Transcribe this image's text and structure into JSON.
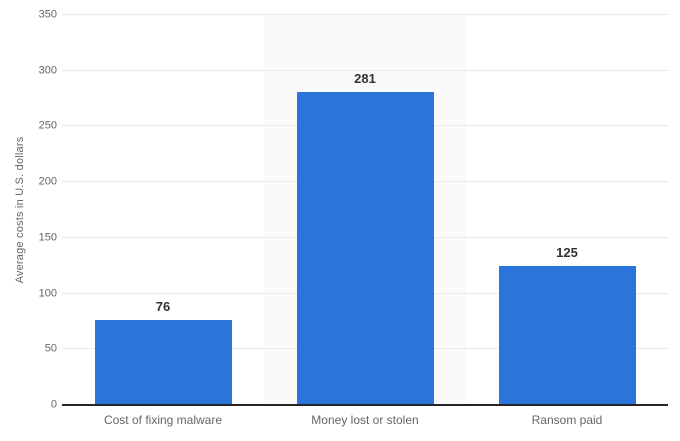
{
  "chart": {
    "colors": {
      "bar": "#2b74da",
      "band": "#fafafa",
      "grid": "#e9e9e9",
      "axis": "#262626",
      "tick": "#666666",
      "value": "#333333"
    }
  },
  "chart_data": {
    "type": "bar",
    "categories": [
      "Cost of fixing malware",
      "Money lost or stolen",
      "Ransom paid"
    ],
    "values": [
      76,
      281,
      125
    ],
    "title": "",
    "xlabel": "",
    "ylabel": "Average costs in U.S. dollars",
    "ylim": [
      0,
      350
    ],
    "yticks": [
      0,
      50,
      100,
      150,
      200,
      250,
      300,
      350
    ],
    "grid": true,
    "legend": false,
    "band_shaded_column_index": 1
  }
}
